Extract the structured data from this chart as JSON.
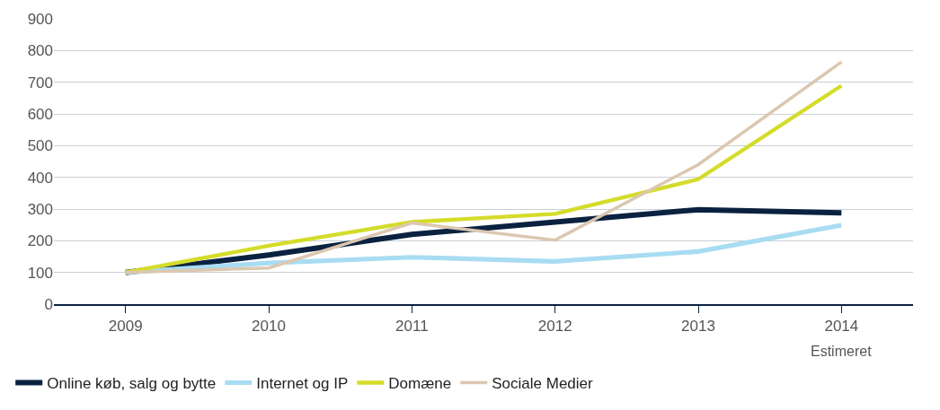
{
  "chart_data": {
    "type": "line",
    "categories": [
      "2009",
      "2010",
      "2011",
      "2012",
      "2013",
      "2014"
    ],
    "series": [
      {
        "name": "Online køb, salg og bytte",
        "color": "#0a2240",
        "values": [
          100,
          155,
          220,
          259,
          298,
          288
        ]
      },
      {
        "name": "Internet og IP",
        "color": "#a8dcf2",
        "values": [
          100,
          130,
          148,
          135,
          166,
          249
        ]
      },
      {
        "name": "Domæne",
        "color": "#d4dc2a",
        "values": [
          100,
          184,
          259,
          285,
          394,
          689
        ]
      },
      {
        "name": "Sociale Medier",
        "color": "#dcc7b0",
        "values": [
          100,
          114,
          256,
          202,
          440,
          764
        ]
      }
    ],
    "ylim": [
      0,
      900
    ],
    "yticks": [
      0,
      100,
      200,
      300,
      400,
      500,
      600,
      700,
      800,
      900
    ],
    "grid": "y",
    "legend": "bottom left",
    "marker": "none",
    "line_style": "solid",
    "annotations": [
      "Estimeret"
    ]
  }
}
